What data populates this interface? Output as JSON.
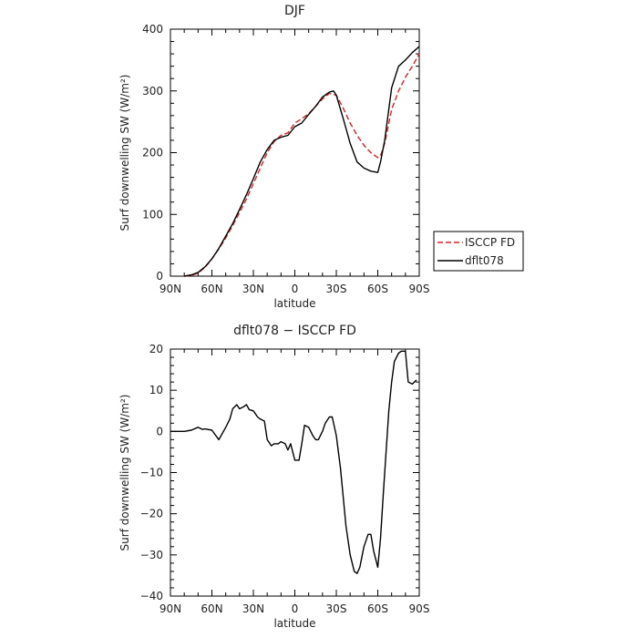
{
  "chart_data": [
    {
      "type": "line",
      "title": "DJF",
      "xlabel": "latitude",
      "ylabel": "Surf downwelling SW (W/m²)",
      "xlim": [
        90,
        -90
      ],
      "ylim": [
        0,
        400
      ],
      "xticks": [
        90,
        60,
        30,
        0,
        -30,
        -60,
        -90
      ],
      "xtick_labels": [
        "90N",
        "60N",
        "30N",
        "0",
        "30S",
        "60S",
        "90S"
      ],
      "yticks": [
        0,
        100,
        200,
        300,
        400
      ],
      "ytick_labels": [
        "0",
        "100",
        "200",
        "300",
        "400"
      ],
      "legend": "right of plot, boxed",
      "series": [
        {
          "name": "ISCCP FD",
          "color": "#e02020",
          "dash": "dashed",
          "x": [
            80,
            75,
            70,
            65,
            60,
            55,
            50,
            45,
            40,
            35,
            30,
            25,
            20,
            15,
            10,
            5,
            0,
            -5,
            -10,
            -15,
            -20,
            -25,
            -30,
            -35,
            -40,
            -45,
            -50,
            -55,
            -60,
            -62,
            -65,
            -70,
            -75,
            -80,
            -85,
            -90
          ],
          "y": [
            0,
            1,
            5,
            14,
            28,
            44,
            62,
            82,
            103,
            125,
            150,
            175,
            200,
            218,
            228,
            232,
            248,
            255,
            263,
            275,
            287,
            296,
            293,
            272,
            248,
            228,
            212,
            200,
            192,
            195,
            215,
            270,
            300,
            322,
            340,
            360
          ]
        },
        {
          "name": "dflt078",
          "color": "#000000",
          "dash": "solid",
          "x": [
            80,
            75,
            70,
            65,
            60,
            55,
            50,
            45,
            40,
            35,
            30,
            25,
            20,
            15,
            10,
            5,
            0,
            -5,
            -10,
            -15,
            -20,
            -25,
            -28,
            -30,
            -35,
            -40,
            -45,
            -50,
            -55,
            -60,
            -62,
            -65,
            -70,
            -75,
            -80,
            -85,
            -90
          ],
          "y": [
            0,
            2,
            6,
            15,
            28,
            45,
            65,
            85,
            108,
            132,
            158,
            185,
            205,
            220,
            225,
            228,
            242,
            248,
            262,
            275,
            290,
            298,
            300,
            293,
            255,
            215,
            185,
            175,
            170,
            168,
            185,
            220,
            305,
            340,
            350,
            362,
            372
          ]
        }
      ]
    },
    {
      "type": "line",
      "title": "dflt078 − ISCCP FD",
      "xlabel": "latitude",
      "ylabel": "Surf downwelling SW (W/m²)",
      "xlim": [
        90,
        -90
      ],
      "ylim": [
        -40,
        20
      ],
      "xticks": [
        90,
        60,
        30,
        0,
        -30,
        -60,
        -90
      ],
      "xtick_labels": [
        "90N",
        "60N",
        "30N",
        "0",
        "30S",
        "60S",
        "90S"
      ],
      "yticks": [
        -40,
        -30,
        -20,
        -10,
        0,
        10,
        20
      ],
      "ytick_labels": [
        "−40",
        "−30",
        "−20",
        "−10",
        "0",
        "10",
        "20"
      ],
      "series": [
        {
          "color": "#000000",
          "dash": "solid",
          "x": [
            90,
            85,
            80,
            75,
            70,
            67,
            65,
            60,
            55,
            50,
            47,
            45,
            42,
            40,
            37,
            35,
            33,
            30,
            27,
            25,
            22,
            20,
            17,
            15,
            12,
            10,
            7,
            5,
            3,
            0,
            -3,
            -5,
            -7,
            -10,
            -13,
            -15,
            -17,
            -20,
            -22,
            -25,
            -27,
            -30,
            -33,
            -35,
            -37,
            -40,
            -43,
            -45,
            -47,
            -50,
            -53,
            -55,
            -57,
            -60,
            -62,
            -64,
            -66,
            -68,
            -70,
            -72,
            -75,
            -77,
            -80,
            -82,
            -85,
            -88
          ],
          "y": [
            0,
            0,
            0,
            0.3,
            1,
            0.5,
            0.6,
            0.3,
            -2,
            1,
            3,
            5.5,
            6.5,
            5.5,
            6,
            6.5,
            5.3,
            5,
            3.5,
            3,
            2.5,
            -2,
            -3.5,
            -3,
            -3,
            -2.5,
            -3,
            -4.5,
            -3,
            -7,
            -7,
            -3,
            1.5,
            1,
            -1,
            -2,
            -2,
            0,
            2,
            3.5,
            3.5,
            -1,
            -9,
            -16,
            -23,
            -30,
            -34,
            -34.5,
            -33,
            -28,
            -25,
            -25,
            -29,
            -33,
            -26,
            -15,
            -5,
            5,
            12,
            17,
            19,
            19.5,
            19.5,
            12,
            11.5,
            12.5
          ]
        }
      ]
    }
  ]
}
